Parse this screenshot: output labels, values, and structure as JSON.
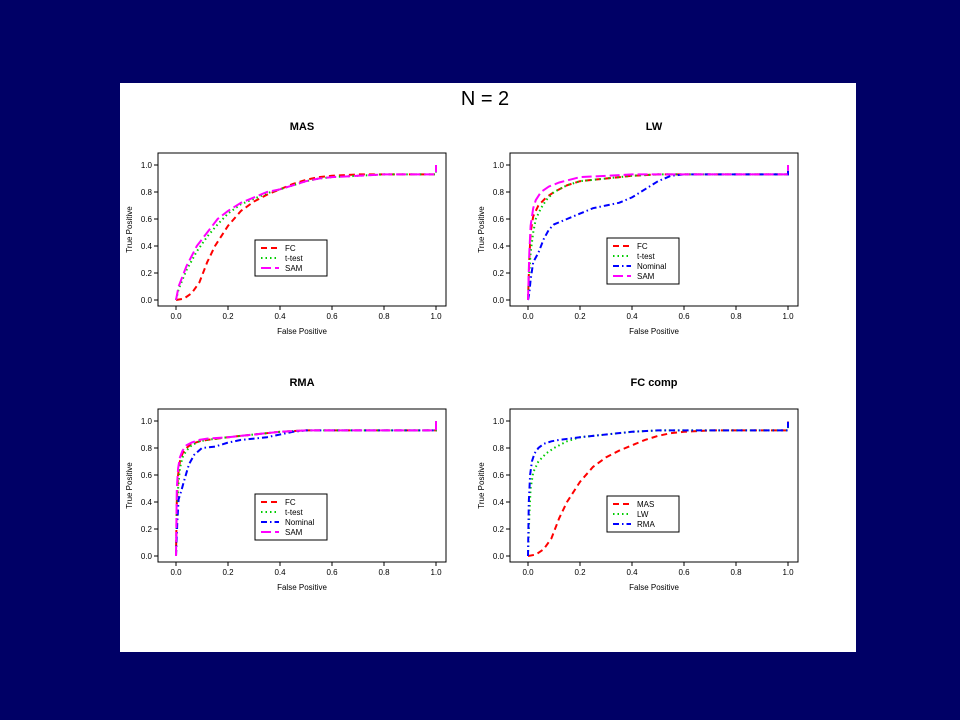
{
  "figure": {
    "title": "N = 2",
    "background_color": "#000066",
    "panel_color": "#ffffff"
  },
  "styles": {
    "FC": {
      "color": "#ff0000",
      "dash": "6,4"
    },
    "t-test": {
      "color": "#00cc00",
      "dash": "1.5,3"
    },
    "Nominal": {
      "color": "#0000ff",
      "dash": "6,3,1.5,3"
    },
    "SAM": {
      "color": "#ff00ff",
      "dash": "10,4"
    },
    "MAS": {
      "color": "#ff0000",
      "dash": "6,4"
    },
    "LW": {
      "color": "#00cc00",
      "dash": "1.5,3"
    },
    "RMA": {
      "color": "#0000ff",
      "dash": "6,3,1.5,3"
    }
  },
  "chart_data": [
    {
      "type": "line",
      "title": "MAS",
      "xlabel": "False Positive",
      "ylabel": "True Positive",
      "xlim": [
        0,
        1
      ],
      "ylim": [
        0,
        1
      ],
      "xticks": [
        "0.0",
        "0.2",
        "0.4",
        "0.6",
        "0.8",
        "1.0"
      ],
      "yticks": [
        "0.0",
        "0.2",
        "0.4",
        "0.6",
        "0.8",
        "1.0"
      ],
      "legend": [
        "FC",
        "t-test",
        "SAM"
      ],
      "legend_position": "bottom-center",
      "series": [
        {
          "name": "FC",
          "x": [
            0,
            0.03,
            0.06,
            0.09,
            0.12,
            0.15,
            0.2,
            0.25,
            0.3,
            0.35,
            0.4,
            0.45,
            0.5,
            0.55,
            0.6,
            0.7,
            0.8,
            0.9,
            1.0,
            1.0
          ],
          "y": [
            0,
            0.01,
            0.05,
            0.13,
            0.28,
            0.4,
            0.55,
            0.66,
            0.73,
            0.78,
            0.82,
            0.86,
            0.89,
            0.91,
            0.92,
            0.93,
            0.93,
            0.93,
            0.93,
            1.0
          ]
        },
        {
          "name": "t-test",
          "x": [
            0,
            0.01,
            0.04,
            0.08,
            0.12,
            0.16,
            0.2,
            0.25,
            0.3,
            0.35,
            0.4,
            0.45,
            0.5,
            0.55,
            0.6,
            0.7,
            0.8,
            0.9,
            1.0,
            1.0
          ],
          "y": [
            0,
            0.08,
            0.22,
            0.36,
            0.47,
            0.56,
            0.64,
            0.71,
            0.75,
            0.79,
            0.82,
            0.85,
            0.88,
            0.9,
            0.91,
            0.92,
            0.93,
            0.93,
            0.93,
            1.0
          ]
        },
        {
          "name": "SAM",
          "x": [
            0,
            0.01,
            0.04,
            0.08,
            0.12,
            0.16,
            0.2,
            0.25,
            0.3,
            0.35,
            0.4,
            0.45,
            0.5,
            0.55,
            0.6,
            0.7,
            0.8,
            0.9,
            1.0,
            1.0
          ],
          "y": [
            0,
            0.1,
            0.25,
            0.4,
            0.5,
            0.6,
            0.66,
            0.72,
            0.76,
            0.8,
            0.82,
            0.85,
            0.88,
            0.9,
            0.91,
            0.92,
            0.93,
            0.93,
            0.93,
            1.0
          ]
        }
      ]
    },
    {
      "type": "line",
      "title": "LW",
      "xlabel": "False Positive",
      "ylabel": "True Positive",
      "xlim": [
        0,
        1
      ],
      "ylim": [
        0,
        1
      ],
      "xticks": [
        "0.0",
        "0.2",
        "0.4",
        "0.6",
        "0.8",
        "1.0"
      ],
      "yticks": [
        "0.0",
        "0.2",
        "0.4",
        "0.6",
        "0.8",
        "1.0"
      ],
      "legend": [
        "FC",
        "t-test",
        "Nominal",
        "SAM"
      ],
      "legend_position": "bottom-center",
      "series": [
        {
          "name": "FC",
          "x": [
            0,
            0.005,
            0.01,
            0.02,
            0.04,
            0.07,
            0.1,
            0.15,
            0.2,
            0.3,
            0.4,
            0.5,
            0.6,
            0.7,
            0.8,
            0.9,
            1.0,
            1.0
          ],
          "y": [
            0,
            0.3,
            0.5,
            0.62,
            0.7,
            0.76,
            0.8,
            0.85,
            0.88,
            0.9,
            0.92,
            0.93,
            0.93,
            0.93,
            0.93,
            0.93,
            0.93,
            1.0
          ]
        },
        {
          "name": "t-test",
          "x": [
            0,
            0.005,
            0.01,
            0.02,
            0.03,
            0.05,
            0.07,
            0.1,
            0.15,
            0.2,
            0.3,
            0.4,
            0.5,
            0.6,
            0.7,
            0.8,
            0.9,
            1.0,
            1.0
          ],
          "y": [
            0,
            0.2,
            0.35,
            0.5,
            0.6,
            0.68,
            0.74,
            0.8,
            0.85,
            0.88,
            0.9,
            0.92,
            0.93,
            0.93,
            0.93,
            0.93,
            0.93,
            0.93,
            1.0
          ]
        },
        {
          "name": "Nominal",
          "x": [
            0,
            0.005,
            0.01,
            0.02,
            0.04,
            0.06,
            0.08,
            0.1,
            0.15,
            0.2,
            0.25,
            0.3,
            0.35,
            0.4,
            0.45,
            0.5,
            0.55,
            0.6,
            0.8,
            1.0,
            1.0
          ],
          "y": [
            0,
            0.05,
            0.15,
            0.28,
            0.35,
            0.45,
            0.52,
            0.56,
            0.6,
            0.64,
            0.68,
            0.7,
            0.72,
            0.76,
            0.82,
            0.88,
            0.92,
            0.93,
            0.93,
            0.93,
            1.0
          ]
        },
        {
          "name": "SAM",
          "x": [
            0,
            0.005,
            0.01,
            0.02,
            0.03,
            0.05,
            0.08,
            0.12,
            0.16,
            0.2,
            0.3,
            0.4,
            0.5,
            0.6,
            0.7,
            0.8,
            0.9,
            1.0,
            1.0
          ],
          "y": [
            0,
            0.35,
            0.55,
            0.68,
            0.74,
            0.8,
            0.84,
            0.87,
            0.89,
            0.91,
            0.92,
            0.93,
            0.93,
            0.93,
            0.93,
            0.93,
            0.93,
            0.93,
            1.0
          ]
        }
      ]
    },
    {
      "type": "line",
      "title": "RMA",
      "xlabel": "False Positive",
      "ylabel": "True Positive",
      "xlim": [
        0,
        1
      ],
      "ylim": [
        0,
        1
      ],
      "xticks": [
        "0.0",
        "0.2",
        "0.4",
        "0.6",
        "0.8",
        "1.0"
      ],
      "yticks": [
        "0.0",
        "0.2",
        "0.4",
        "0.6",
        "0.8",
        "1.0"
      ],
      "legend": [
        "FC",
        "t-test",
        "Nominal",
        "SAM"
      ],
      "legend_position": "bottom-center",
      "series": [
        {
          "name": "FC",
          "x": [
            0,
            0.003,
            0.008,
            0.015,
            0.025,
            0.04,
            0.06,
            0.09,
            0.12,
            0.2,
            0.3,
            0.4,
            0.5,
            0.6,
            0.7,
            0.8,
            0.9,
            1.0,
            1.0
          ],
          "y": [
            0,
            0.4,
            0.6,
            0.7,
            0.76,
            0.8,
            0.83,
            0.85,
            0.86,
            0.88,
            0.9,
            0.92,
            0.93,
            0.93,
            0.93,
            0.93,
            0.93,
            0.93,
            1.0
          ]
        },
        {
          "name": "t-test",
          "x": [
            0,
            0.003,
            0.008,
            0.015,
            0.025,
            0.04,
            0.06,
            0.09,
            0.12,
            0.2,
            0.3,
            0.4,
            0.5,
            0.6,
            0.7,
            0.8,
            0.9,
            1.0,
            1.0
          ],
          "y": [
            0,
            0.3,
            0.5,
            0.65,
            0.73,
            0.78,
            0.82,
            0.85,
            0.86,
            0.88,
            0.9,
            0.92,
            0.93,
            0.93,
            0.93,
            0.93,
            0.93,
            0.93,
            1.0
          ]
        },
        {
          "name": "Nominal",
          "x": [
            0,
            0.005,
            0.01,
            0.02,
            0.03,
            0.05,
            0.07,
            0.1,
            0.15,
            0.2,
            0.25,
            0.3,
            0.35,
            0.4,
            0.45,
            0.5,
            0.6,
            0.7,
            0.8,
            0.9,
            1.0,
            1.0
          ],
          "y": [
            0,
            0.25,
            0.42,
            0.48,
            0.55,
            0.68,
            0.75,
            0.8,
            0.81,
            0.84,
            0.86,
            0.87,
            0.88,
            0.9,
            0.92,
            0.93,
            0.93,
            0.93,
            0.93,
            0.93,
            0.93,
            1.0
          ]
        },
        {
          "name": "SAM",
          "x": [
            0,
            0.003,
            0.008,
            0.015,
            0.025,
            0.04,
            0.06,
            0.09,
            0.12,
            0.2,
            0.3,
            0.4,
            0.5,
            0.6,
            0.7,
            0.8,
            0.9,
            1.0,
            1.0
          ],
          "y": [
            0,
            0.5,
            0.65,
            0.73,
            0.78,
            0.82,
            0.84,
            0.86,
            0.87,
            0.88,
            0.9,
            0.92,
            0.93,
            0.93,
            0.93,
            0.93,
            0.93,
            0.93,
            1.0
          ]
        }
      ]
    },
    {
      "type": "line",
      "title": "FC comp",
      "xlabel": "False Positive",
      "ylabel": "True Positive",
      "xlim": [
        0,
        1
      ],
      "ylim": [
        0,
        1
      ],
      "xticks": [
        "0.0",
        "0.2",
        "0.4",
        "0.6",
        "0.8",
        "1.0"
      ],
      "yticks": [
        "0.0",
        "0.2",
        "0.4",
        "0.6",
        "0.8",
        "1.0"
      ],
      "legend": [
        "MAS",
        "LW",
        "RMA"
      ],
      "legend_position": "bottom-center",
      "series": [
        {
          "name": "MAS",
          "x": [
            0,
            0.03,
            0.06,
            0.09,
            0.12,
            0.15,
            0.2,
            0.25,
            0.3,
            0.35,
            0.4,
            0.45,
            0.5,
            0.55,
            0.6,
            0.7,
            0.8,
            0.9,
            1.0,
            1.0
          ],
          "y": [
            0,
            0.01,
            0.05,
            0.13,
            0.28,
            0.4,
            0.55,
            0.66,
            0.73,
            0.78,
            0.82,
            0.86,
            0.89,
            0.91,
            0.92,
            0.93,
            0.93,
            0.93,
            0.93,
            1.0
          ]
        },
        {
          "name": "LW",
          "x": [
            0,
            0.005,
            0.01,
            0.02,
            0.04,
            0.07,
            0.1,
            0.15,
            0.2,
            0.3,
            0.4,
            0.5,
            0.6,
            0.7,
            0.8,
            0.9,
            1.0,
            1.0
          ],
          "y": [
            0,
            0.3,
            0.5,
            0.62,
            0.7,
            0.76,
            0.8,
            0.85,
            0.88,
            0.9,
            0.92,
            0.93,
            0.93,
            0.93,
            0.93,
            0.93,
            0.93,
            1.0
          ]
        },
        {
          "name": "RMA",
          "x": [
            0,
            0.003,
            0.008,
            0.015,
            0.025,
            0.04,
            0.06,
            0.09,
            0.12,
            0.2,
            0.3,
            0.4,
            0.5,
            0.6,
            0.7,
            0.8,
            0.9,
            1.0,
            1.0
          ],
          "y": [
            0,
            0.4,
            0.6,
            0.7,
            0.76,
            0.8,
            0.83,
            0.85,
            0.86,
            0.88,
            0.9,
            0.92,
            0.93,
            0.93,
            0.93,
            0.93,
            0.93,
            0.93,
            1.0
          ]
        }
      ]
    }
  ]
}
